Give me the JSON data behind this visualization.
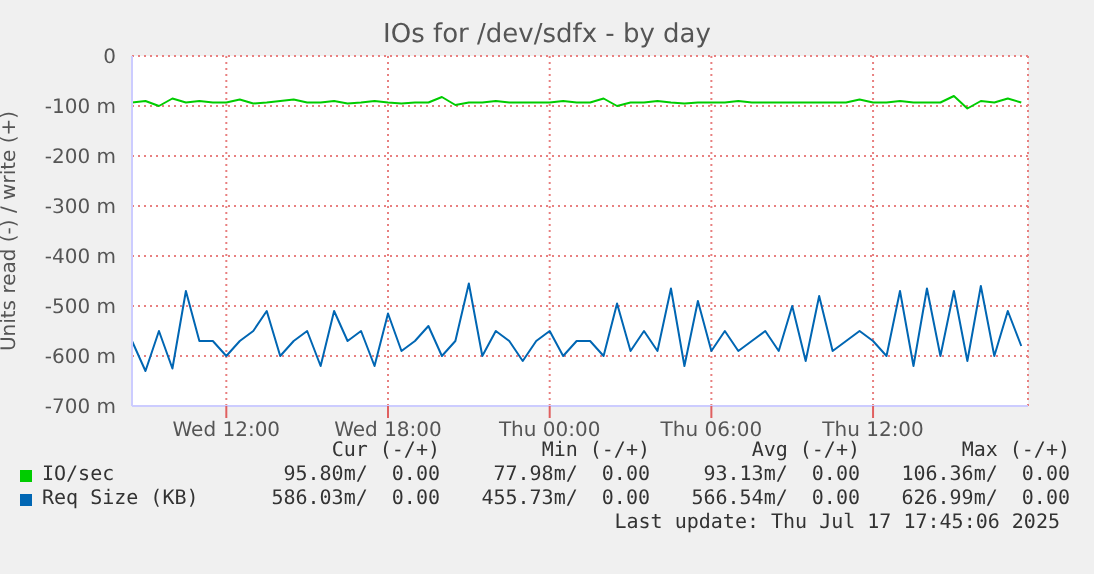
{
  "chart_data": {
    "type": "line",
    "title": "IOs for /dev/sdfx - by day",
    "ylabel": "Units read (-) / write (+)",
    "x": [
      "2025-07-16T08:30",
      "2025-07-16T09:00",
      "2025-07-16T09:30",
      "2025-07-16T10:00",
      "2025-07-16T10:30",
      "2025-07-16T11:00",
      "2025-07-16T11:30",
      "2025-07-16T12:00",
      "2025-07-16T12:30",
      "2025-07-16T13:00",
      "2025-07-16T13:30",
      "2025-07-16T14:00",
      "2025-07-16T14:30",
      "2025-07-16T15:00",
      "2025-07-16T15:30",
      "2025-07-16T16:00",
      "2025-07-16T16:30",
      "2025-07-16T17:00",
      "2025-07-16T17:30",
      "2025-07-16T18:00",
      "2025-07-16T18:30",
      "2025-07-16T19:00",
      "2025-07-16T19:30",
      "2025-07-16T20:00",
      "2025-07-16T20:30",
      "2025-07-16T21:00",
      "2025-07-16T21:30",
      "2025-07-16T22:00",
      "2025-07-16T22:30",
      "2025-07-16T23:00",
      "2025-07-16T23:30",
      "2025-07-17T00:00",
      "2025-07-17T00:30",
      "2025-07-17T01:00",
      "2025-07-17T01:30",
      "2025-07-17T02:00",
      "2025-07-17T02:30",
      "2025-07-17T03:00",
      "2025-07-17T03:30",
      "2025-07-17T04:00",
      "2025-07-17T04:30",
      "2025-07-17T05:00",
      "2025-07-17T05:30",
      "2025-07-17T06:00",
      "2025-07-17T06:30",
      "2025-07-17T07:00",
      "2025-07-17T07:30",
      "2025-07-17T08:00",
      "2025-07-17T08:30",
      "2025-07-17T09:00",
      "2025-07-17T09:30",
      "2025-07-17T10:00",
      "2025-07-17T10:30",
      "2025-07-17T11:00",
      "2025-07-17T11:30",
      "2025-07-17T12:00",
      "2025-07-17T12:30",
      "2025-07-17T13:00",
      "2025-07-17T13:30",
      "2025-07-17T14:00",
      "2025-07-17T14:30",
      "2025-07-17T15:00",
      "2025-07-17T15:30",
      "2025-07-17T16:00",
      "2025-07-17T16:30",
      "2025-07-17T17:00",
      "2025-07-17T17:30"
    ],
    "series": [
      {
        "name": "IO/sec",
        "color": "#00cc00",
        "values": [
          -93,
          -90,
          -100,
          -85,
          -93,
          -90,
          -93,
          -93,
          -87,
          -95,
          -93,
          -90,
          -87,
          -93,
          -93,
          -90,
          -95,
          -93,
          -90,
          -93,
          -95,
          -93,
          -93,
          -82,
          -98,
          -93,
          -93,
          -90,
          -93,
          -93,
          -93,
          -93,
          -90,
          -93,
          -93,
          -85,
          -100,
          -93,
          -93,
          -90,
          -93,
          -95,
          -93,
          -93,
          -93,
          -90,
          -93,
          -93,
          -93,
          -93,
          -93,
          -93,
          -93,
          -93,
          -87,
          -93,
          -93,
          -90,
          -93,
          -93,
          -93,
          -80,
          -105,
          -90,
          -93,
          -85,
          -93
        ]
      },
      {
        "name": "Req Size (KB)",
        "color": "#0066b3",
        "values": [
          -570,
          -630,
          -550,
          -625,
          -470,
          -570,
          -570,
          -600,
          -570,
          -550,
          -510,
          -600,
          -570,
          -550,
          -620,
          -510,
          -570,
          -550,
          -620,
          -515,
          -590,
          -570,
          -540,
          -600,
          -570,
          -455,
          -600,
          -550,
          -570,
          -610,
          -570,
          -550,
          -600,
          -570,
          -570,
          -600,
          -495,
          -590,
          -550,
          -590,
          -465,
          -620,
          -490,
          -590,
          -550,
          -590,
          -570,
          -550,
          -590,
          -500,
          -610,
          -480,
          -590,
          -570,
          -550,
          -570,
          -600,
          -470,
          -620,
          -465,
          -600,
          -470,
          -610,
          -460,
          -600,
          -510,
          -580
        ]
      }
    ],
    "xlim": [
      "2025-07-16T08:30",
      "2025-07-17T17:45"
    ],
    "xticks": [
      {
        "value": "2025-07-16T12:00",
        "label": "Wed 12:00"
      },
      {
        "value": "2025-07-16T18:00",
        "label": "Wed 18:00"
      },
      {
        "value": "2025-07-17T00:00",
        "label": "Thu 00:00"
      },
      {
        "value": "2025-07-17T06:00",
        "label": "Thu 06:00"
      },
      {
        "value": "2025-07-17T12:00",
        "label": "Thu 12:00"
      }
    ],
    "ylim": [
      -700,
      0
    ],
    "yticks": [
      {
        "value": -700,
        "label": "-700 m"
      },
      {
        "value": -600,
        "label": "-600 m"
      },
      {
        "value": -500,
        "label": "-500 m"
      },
      {
        "value": -400,
        "label": "-400 m"
      },
      {
        "value": -300,
        "label": "-300 m"
      },
      {
        "value": -200,
        "label": "-200 m"
      },
      {
        "value": -100,
        "label": "-100 m"
      },
      0
    ],
    "grid": true,
    "legend": "bottom",
    "marker": "none",
    "line_style": "solid",
    "annotations": [
      "Cur (-/+)",
      "Min (-/+)",
      "Avg (-/+)",
      "Max (-/+)",
      "95.80m/  0.00",
      "77.98m/  0.00",
      "93.13m/  0.00",
      "106.36m/  0.00",
      "586.03m/  0.00",
      "455.73m/  0.00",
      "566.54m/  0.00",
      "626.99m/  0.00",
      "Last update: Thu Jul 17 17:45:06 2025"
    ]
  }
}
